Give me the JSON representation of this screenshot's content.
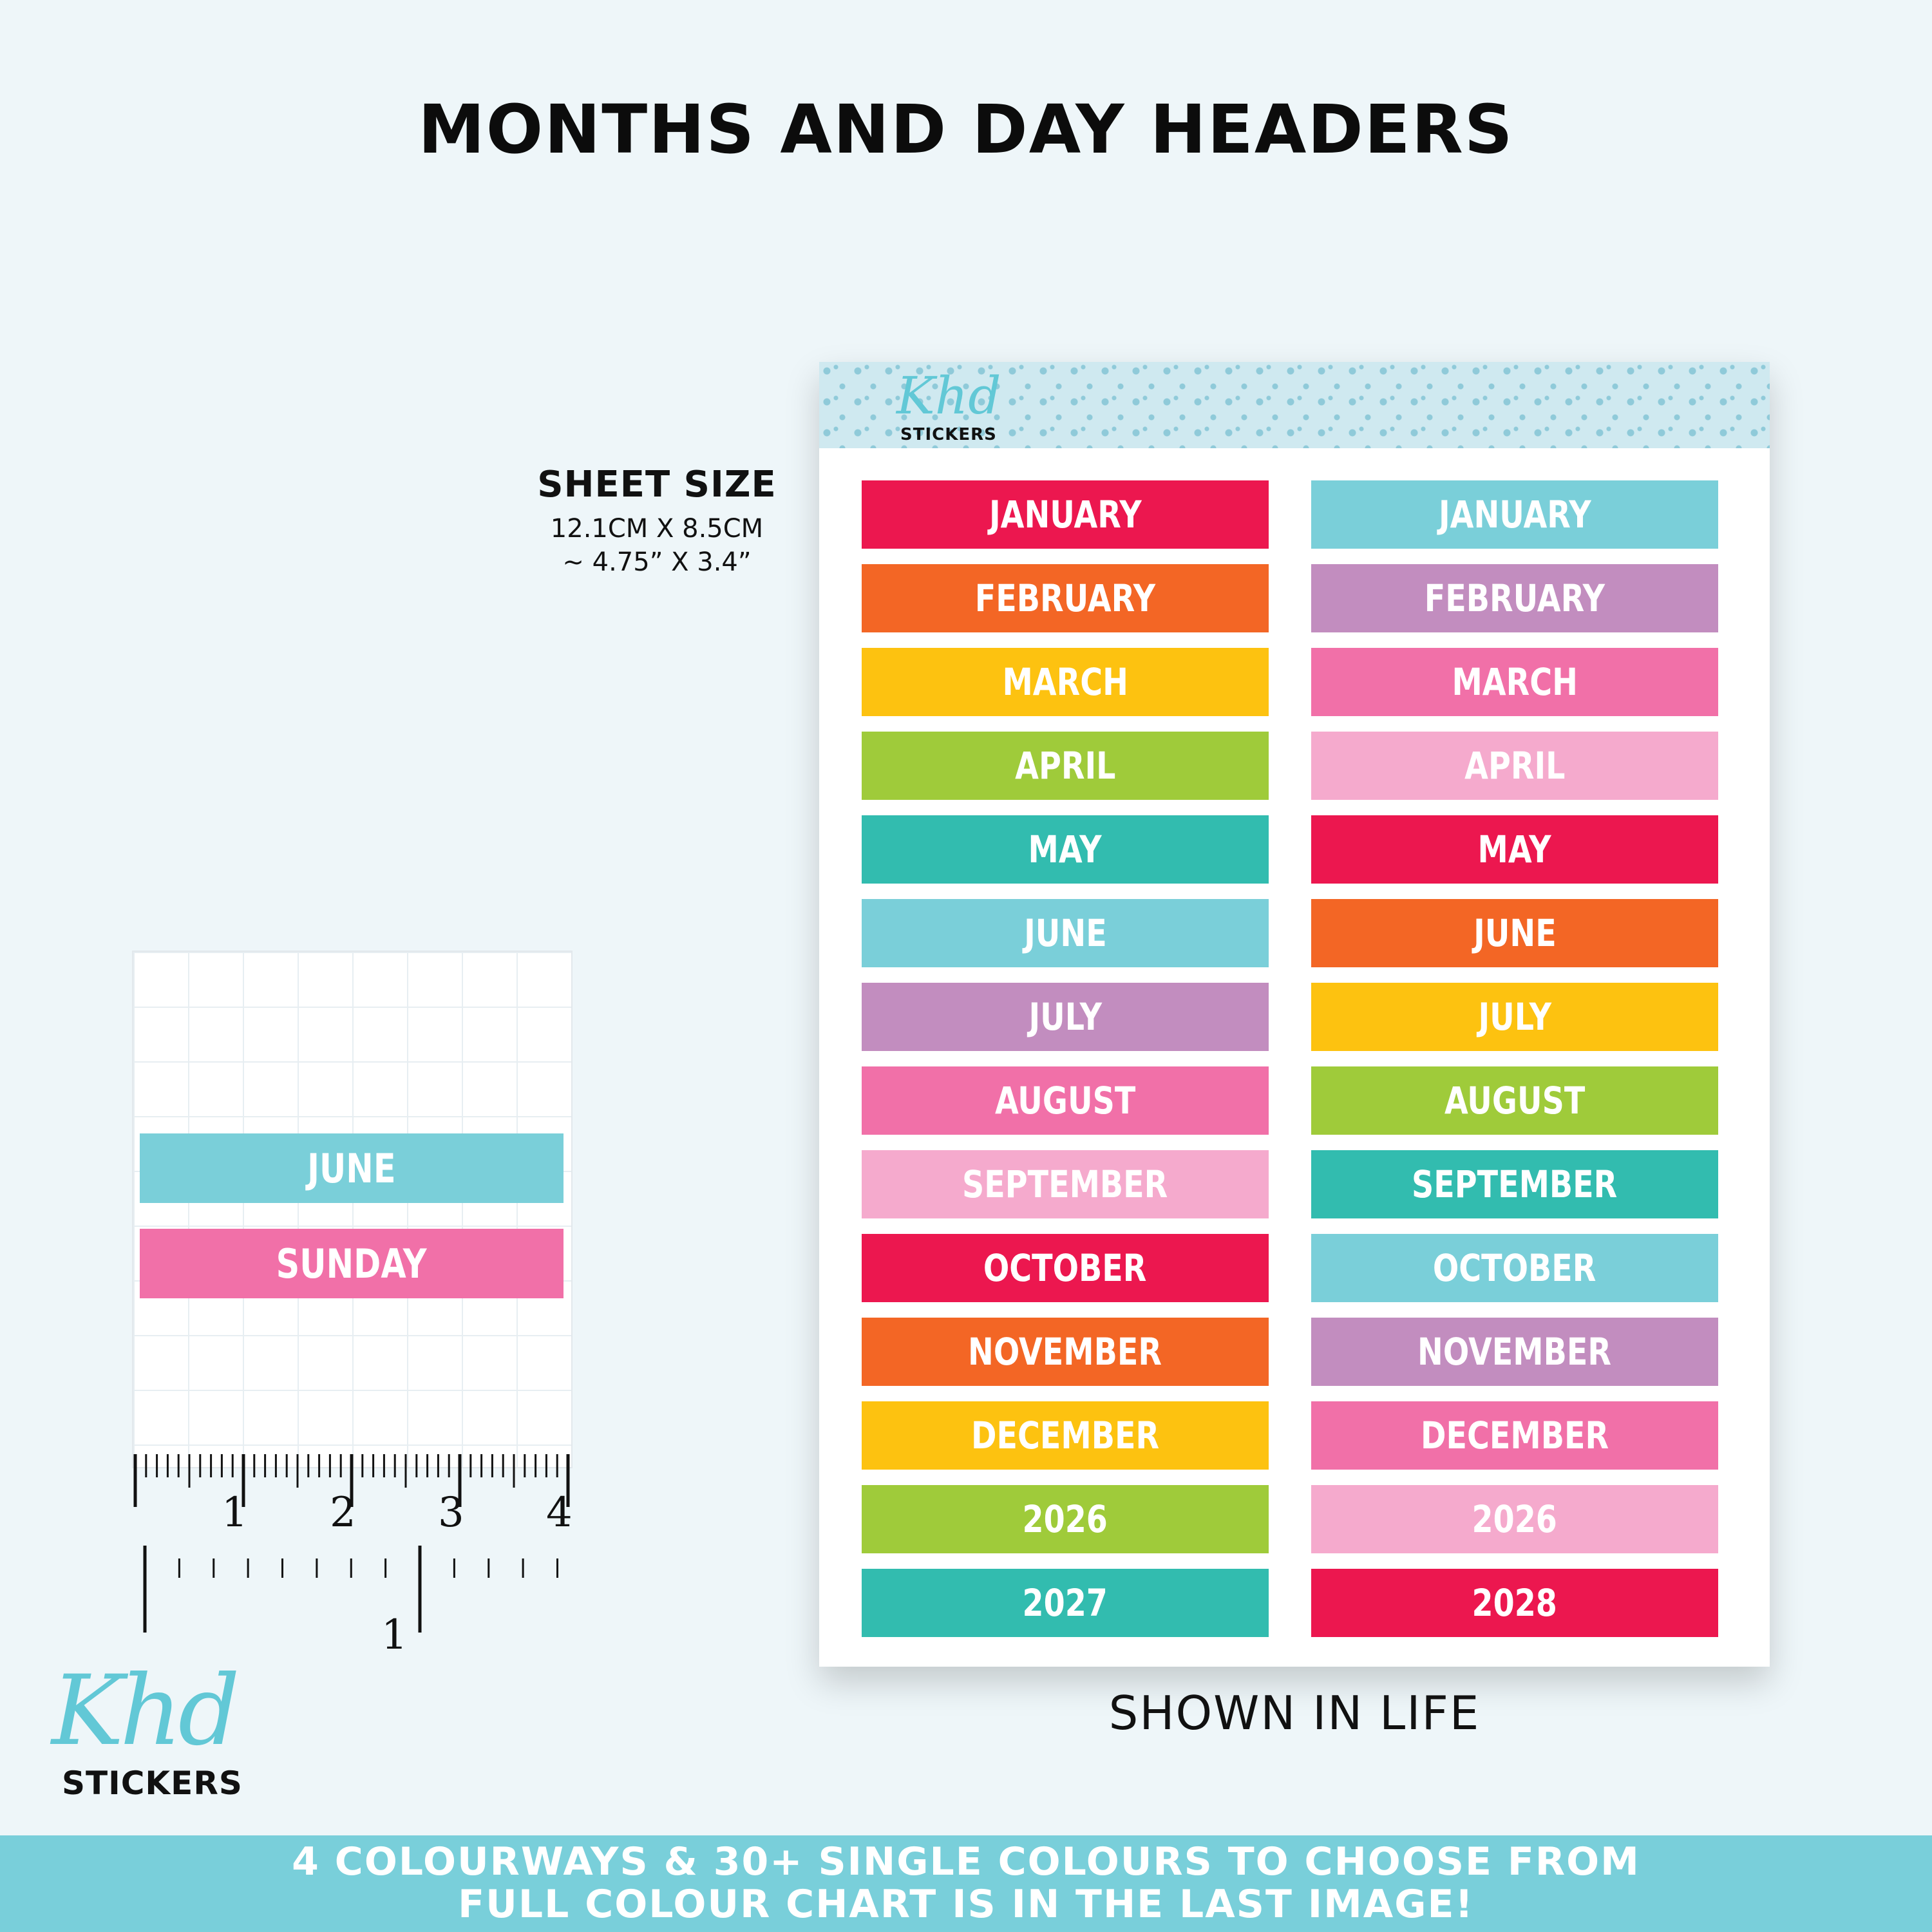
{
  "title": "MONTHS AND DAY HEADERS",
  "sheet_size": {
    "heading": "SHEET SIZE",
    "metric": "12.1CM X 8.5CM",
    "imperial": "~ 4.75” X 3.4”"
  },
  "sheet_logo": {
    "script": "Khd",
    "word": "STICKERS"
  },
  "stickers": {
    "left": [
      {
        "label": "JANUARY",
        "color": "#ec174f"
      },
      {
        "label": "FEBRUARY",
        "color": "#f36625"
      },
      {
        "label": "MARCH",
        "color": "#fdc210"
      },
      {
        "label": "APRIL",
        "color": "#9fcb3a"
      },
      {
        "label": "MAY",
        "color": "#32bcaf"
      },
      {
        "label": "JUNE",
        "color": "#7acfd9"
      },
      {
        "label": "JULY",
        "color": "#c28dbf"
      },
      {
        "label": "AUGUST",
        "color": "#f170a8"
      },
      {
        "label": "SEPTEMBER",
        "color": "#f5aacd"
      },
      {
        "label": "OCTOBER",
        "color": "#ec174f"
      },
      {
        "label": "NOVEMBER",
        "color": "#f36625"
      },
      {
        "label": "DECEMBER",
        "color": "#fdc210"
      },
      {
        "label": "2026",
        "color": "#9fcb3a"
      },
      {
        "label": "2027",
        "color": "#32bcaf"
      }
    ],
    "right": [
      {
        "label": "JANUARY",
        "color": "#7acfd9"
      },
      {
        "label": "FEBRUARY",
        "color": "#c28dbf"
      },
      {
        "label": "MARCH",
        "color": "#f170a8"
      },
      {
        "label": "APRIL",
        "color": "#f5aacd"
      },
      {
        "label": "MAY",
        "color": "#ec174f"
      },
      {
        "label": "JUNE",
        "color": "#f36625"
      },
      {
        "label": "JULY",
        "color": "#fdc210"
      },
      {
        "label": "AUGUST",
        "color": "#9fcb3a"
      },
      {
        "label": "SEPTEMBER",
        "color": "#32bcaf"
      },
      {
        "label": "OCTOBER",
        "color": "#7acfd9"
      },
      {
        "label": "NOVEMBER",
        "color": "#c28dbf"
      },
      {
        "label": "DECEMBER",
        "color": "#f170a8"
      },
      {
        "label": "2026",
        "color": "#f5aacd"
      },
      {
        "label": "2028",
        "color": "#ec174f"
      }
    ]
  },
  "shown_in_life": "SHOWN IN LIFE",
  "example": {
    "month": {
      "label": "JUNE",
      "color": "#7acfd9"
    },
    "day": {
      "label": "SUNDAY",
      "color": "#f170a8"
    }
  },
  "ruler": {
    "cm_labels": [
      "1",
      "2",
      "3",
      "4"
    ],
    "inch_labels": [
      "1"
    ]
  },
  "brand": {
    "script": "Khd",
    "word": "STICKERS"
  },
  "banner": {
    "line1": "4 COLOURWAYS & 30+ SINGLE COLOURS TO CHOOSE FROM",
    "line2": "FULL COLOUR CHART IS IN THE LAST IMAGE!"
  }
}
